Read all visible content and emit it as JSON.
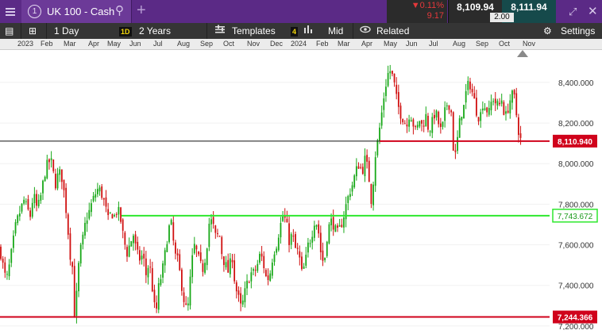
{
  "header": {
    "instrument_number": "1",
    "instrument_name": "UK 100 - Cash",
    "change_pct": "▼0.11%",
    "change_abs": "9.17",
    "sell_price": "8,109.94",
    "spread": "2.00",
    "buy_price": "8,111.94"
  },
  "toolbar": {
    "interval": "1 Day",
    "interval_badge": "1D",
    "range": "2 Years",
    "templates": "Templates",
    "indicator_count": "4",
    "price_type": "Mid",
    "related": "Related",
    "settings": "Settings"
  },
  "timeline": {
    "labels": [
      "2023",
      "Feb",
      "Mar",
      "Apr",
      "May",
      "Jun",
      "Jul",
      "Aug",
      "Sep",
      "Oct",
      "Nov",
      "Dec",
      "2024",
      "Feb",
      "Mar",
      "Apr",
      "May",
      "Jun",
      "Jul",
      "Aug",
      "Sep",
      "Oct",
      "Nov"
    ]
  },
  "chart_data": {
    "type": "candlestick",
    "instrument": "UK 100 - Cash",
    "interval": "1 Day",
    "range": "2 Years",
    "y_ticks": [
      "8,400.000",
      "8,200.000",
      "8,000.000",
      "7,800.000",
      "7,600.000",
      "7,400.000",
      "7,200.000"
    ],
    "ylim": [
      7180,
      8560
    ],
    "horizontal_lines": [
      {
        "value": 8110.94,
        "label": "8,110.940",
        "color": "#d0021b",
        "kind": "current price"
      },
      {
        "value": 7743.672,
        "label": "7,743.672",
        "color": "#2ee82e",
        "kind": "green level"
      },
      {
        "value": 7244.366,
        "label": "7,244.366",
        "color": "#d0021b",
        "kind": "red level"
      }
    ],
    "colors": {
      "up": "#18a818",
      "down": "#d01010"
    },
    "close_path": [
      [
        0,
        7580
      ],
      [
        5,
        7470
      ],
      [
        8,
        7420
      ],
      [
        12,
        7500
      ],
      [
        16,
        7600
      ],
      [
        20,
        7700
      ],
      [
        25,
        7760
      ],
      [
        30,
        7820
      ],
      [
        34,
        7780
      ],
      [
        38,
        7740
      ],
      [
        42,
        7850
      ],
      [
        47,
        7770
      ],
      [
        52,
        7850
      ],
      [
        56,
        7950
      ],
      [
        60,
        8000
      ],
      [
        64,
        8020
      ],
      [
        66,
        7970
      ],
      [
        70,
        7900
      ],
      [
        74,
        7960
      ],
      [
        78,
        7930
      ],
      [
        82,
        7820
      ],
      [
        85,
        7700
      ],
      [
        88,
        7560
      ],
      [
        91,
        7500
      ],
      [
        94,
        7240
      ],
      [
        97,
        7380
      ],
      [
        100,
        7550
      ],
      [
        104,
        7620
      ],
      [
        108,
        7720
      ],
      [
        112,
        7760
      ],
      [
        116,
        7810
      ],
      [
        120,
        7850
      ],
      [
        124,
        7880
      ],
      [
        128,
        7850
      ],
      [
        132,
        7800
      ],
      [
        136,
        7720
      ],
      [
        140,
        7760
      ],
      [
        144,
        7740
      ],
      [
        148,
        7780
      ],
      [
        152,
        7720
      ],
      [
        156,
        7620
      ],
      [
        160,
        7560
      ],
      [
        164,
        7610
      ],
      [
        168,
        7650
      ],
      [
        172,
        7560
      ],
      [
        176,
        7530
      ],
      [
        180,
        7550
      ],
      [
        184,
        7450
      ],
      [
        188,
        7520
      ],
      [
        192,
        7380
      ],
      [
        196,
        7240
      ],
      [
        200,
        7400
      ],
      [
        204,
        7460
      ],
      [
        208,
        7560
      ],
      [
        212,
        7680
      ],
      [
        216,
        7700
      ],
      [
        220,
        7550
      ],
      [
        224,
        7520
      ],
      [
        228,
        7420
      ],
      [
        232,
        7320
      ],
      [
        236,
        7260
      ],
      [
        240,
        7450
      ],
      [
        244,
        7600
      ],
      [
        248,
        7560
      ],
      [
        252,
        7500
      ],
      [
        256,
        7480
      ],
      [
        260,
        7580
      ],
      [
        264,
        7730
      ],
      [
        268,
        7700
      ],
      [
        272,
        7630
      ],
      [
        276,
        7660
      ],
      [
        280,
        7540
      ],
      [
        284,
        7500
      ],
      [
        288,
        7460
      ],
      [
        292,
        7560
      ],
      [
        296,
        7400
      ],
      [
        300,
        7340
      ],
      [
        304,
        7280
      ],
      [
        308,
        7360
      ],
      [
        312,
        7420
      ],
      [
        316,
        7460
      ],
      [
        320,
        7460
      ],
      [
        324,
        7500
      ],
      [
        328,
        7560
      ],
      [
        332,
        7500
      ],
      [
        336,
        7420
      ],
      [
        340,
        7460
      ],
      [
        344,
        7560
      ],
      [
        348,
        7600
      ],
      [
        352,
        7680
      ],
      [
        356,
        7740
      ],
      [
        360,
        7720
      ],
      [
        364,
        7620
      ],
      [
        368,
        7650
      ],
      [
        372,
        7580
      ],
      [
        376,
        7560
      ],
      [
        380,
        7460
      ],
      [
        384,
        7500
      ],
      [
        388,
        7600
      ],
      [
        392,
        7640
      ],
      [
        396,
        7720
      ],
      [
        400,
        7700
      ],
      [
        404,
        7560
      ],
      [
        408,
        7500
      ],
      [
        412,
        7650
      ],
      [
        416,
        7720
      ],
      [
        420,
        7700
      ],
      [
        424,
        7650
      ],
      [
        428,
        7680
      ],
      [
        432,
        7730
      ],
      [
        436,
        7800
      ],
      [
        440,
        7860
      ],
      [
        444,
        7900
      ],
      [
        448,
        7960
      ],
      [
        452,
        8000
      ],
      [
        456,
        7960
      ],
      [
        460,
        8030
      ],
      [
        464,
        7950
      ],
      [
        468,
        7800
      ],
      [
        472,
        8030
      ],
      [
        476,
        8120
      ],
      [
        480,
        8230
      ],
      [
        484,
        8350
      ],
      [
        488,
        8440
      ],
      [
        492,
        8460
      ],
      [
        496,
        8400
      ],
      [
        500,
        8300
      ],
      [
        504,
        8250
      ],
      [
        508,
        8220
      ],
      [
        512,
        8180
      ],
      [
        516,
        8260
      ],
      [
        520,
        8200
      ],
      [
        524,
        8150
      ],
      [
        528,
        8220
      ],
      [
        532,
        8180
      ],
      [
        536,
        8240
      ],
      [
        540,
        8160
      ],
      [
        544,
        8200
      ],
      [
        548,
        8260
      ],
      [
        552,
        8200
      ],
      [
        556,
        8150
      ],
      [
        560,
        8250
      ],
      [
        564,
        8310
      ],
      [
        568,
        8260
      ],
      [
        572,
        8000
      ],
      [
        576,
        8120
      ],
      [
        580,
        8240
      ],
      [
        584,
        8280
      ],
      [
        588,
        8380
      ],
      [
        592,
        8390
      ],
      [
        596,
        8330
      ],
      [
        600,
        8260
      ],
      [
        604,
        8220
      ],
      [
        608,
        8300
      ],
      [
        612,
        8270
      ],
      [
        616,
        8250
      ],
      [
        620,
        8330
      ],
      [
        624,
        8300
      ],
      [
        628,
        8280
      ],
      [
        632,
        8320
      ],
      [
        636,
        8220
      ],
      [
        640,
        8280
      ],
      [
        644,
        8340
      ],
      [
        648,
        8320
      ],
      [
        652,
        8180
      ],
      [
        656,
        8110
      ]
    ]
  }
}
